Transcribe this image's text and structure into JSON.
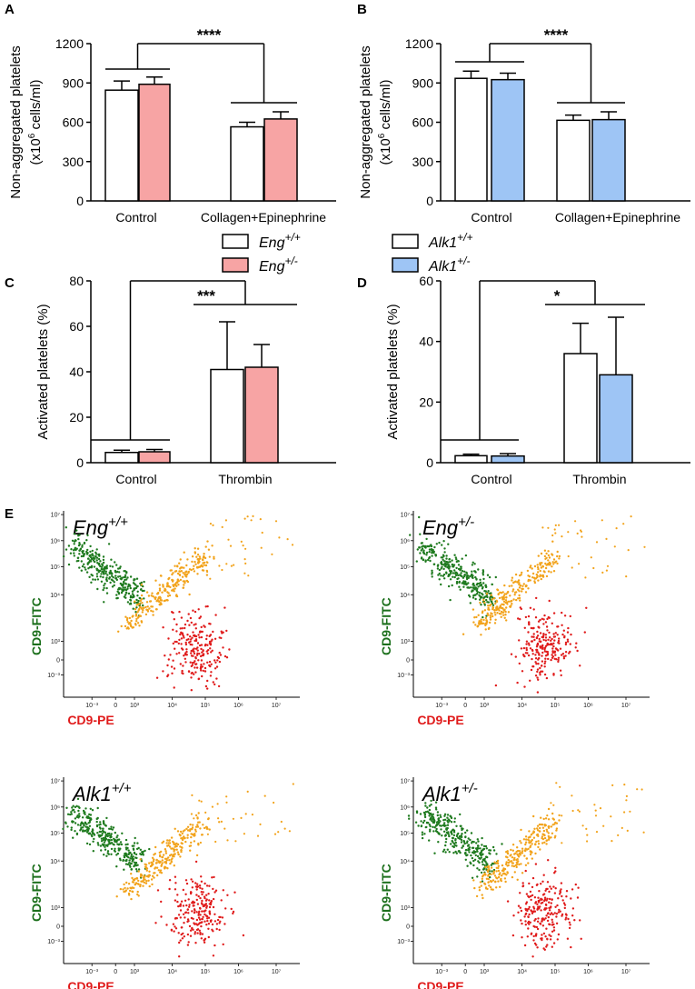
{
  "colors": {
    "white_bar": "#ffffff",
    "eng_het": "#f7a4a4",
    "alk_het": "#9ec5f5",
    "green": "#1e7a1e",
    "orange": "#f2a31b",
    "red": "#e01b1b"
  },
  "legend": [
    {
      "base": "Eng",
      "sup": "+/+",
      "color": "#ffffff"
    },
    {
      "base": "Eng",
      "sup": "+/-",
      "color": "#f7a4a4"
    },
    {
      "base": "Alk1",
      "sup": "+/+",
      "color": "#ffffff"
    },
    {
      "base": "Alk1",
      "sup": "+/-",
      "color": "#9ec5f5"
    }
  ],
  "chart_data": [
    {
      "panel": "A",
      "type": "bar",
      "ylabel_line1": "Non-aggregated platelets",
      "ylabel_line2_pre": "(x10",
      "ylabel_sup": "6",
      "ylabel_line2_post": " cells/ml)",
      "ylim": [
        0,
        1200
      ],
      "yticks": [
        0,
        300,
        600,
        900,
        1200
      ],
      "categories": [
        "Control",
        "Collagen+Epinephrine"
      ],
      "series": [
        {
          "name": "Eng+/+",
          "color": "#ffffff",
          "values": [
            845,
            565
          ],
          "errors": [
            70,
            35
          ]
        },
        {
          "name": "Eng+/-",
          "color": "#f7a4a4",
          "values": [
            890,
            625
          ],
          "errors": [
            55,
            55
          ]
        }
      ],
      "significance": "****"
    },
    {
      "panel": "B",
      "type": "bar",
      "ylabel_line1": "Non-aggregated platelets",
      "ylabel_line2_pre": "(x10",
      "ylabel_sup": "6",
      "ylabel_line2_post": " cells/ml)",
      "ylim": [
        0,
        1200
      ],
      "yticks": [
        0,
        300,
        600,
        900,
        1200
      ],
      "categories": [
        "Control",
        "Collagen+Epinephrine"
      ],
      "series": [
        {
          "name": "Alk1+/+",
          "color": "#ffffff",
          "values": [
            935,
            615
          ],
          "errors": [
            55,
            40
          ]
        },
        {
          "name": "Alk1+/-",
          "color": "#9ec5f5",
          "values": [
            925,
            620
          ],
          "errors": [
            50,
            60
          ]
        }
      ],
      "significance": "****"
    },
    {
      "panel": "C",
      "type": "bar",
      "ylabel_line1": "Activated platelets (%)",
      "ylim": [
        0,
        80
      ],
      "yticks": [
        0,
        20,
        40,
        60,
        80
      ],
      "categories": [
        "Control",
        "Thrombin"
      ],
      "series": [
        {
          "name": "Eng+/+",
          "color": "#ffffff",
          "values": [
            4.5,
            41
          ],
          "errors": [
            1,
            21
          ]
        },
        {
          "name": "Eng+/-",
          "color": "#f7a4a4",
          "values": [
            4.8,
            42
          ],
          "errors": [
            1,
            10
          ]
        }
      ],
      "significance": "***"
    },
    {
      "panel": "D",
      "type": "bar",
      "ylabel_line1": "Activated platelets (%)",
      "ylim": [
        0,
        60
      ],
      "yticks": [
        0,
        20,
        40,
        60
      ],
      "categories": [
        "Control",
        "Thrombin"
      ],
      "series": [
        {
          "name": "Alk1+/+",
          "color": "#ffffff",
          "values": [
            2.3,
            36
          ],
          "errors": [
            0.5,
            10
          ]
        },
        {
          "name": "Alk1+/-",
          "color": "#9ec5f5",
          "values": [
            2.2,
            29
          ],
          "errors": [
            0.8,
            19
          ]
        }
      ],
      "significance": "*"
    }
  ],
  "flow_plots": {
    "panel_letter": "E",
    "x_label": "CD9-PE",
    "y_label": "CD9-FITC",
    "x_ticks": [
      "10⁻³",
      "0",
      "10³",
      "10⁴",
      "10⁵",
      "10⁶",
      "10⁷"
    ],
    "y_ticks": [
      "10⁷",
      "10⁶",
      "10⁵",
      "10⁴",
      "10³",
      "0",
      "10⁻³"
    ],
    "plots": [
      {
        "base": "Eng",
        "sup": "+/+"
      },
      {
        "base": "Eng",
        "sup": "+/-"
      },
      {
        "base": "Alk1",
        "sup": "+/+"
      },
      {
        "base": "Alk1",
        "sup": "+/-"
      }
    ]
  }
}
